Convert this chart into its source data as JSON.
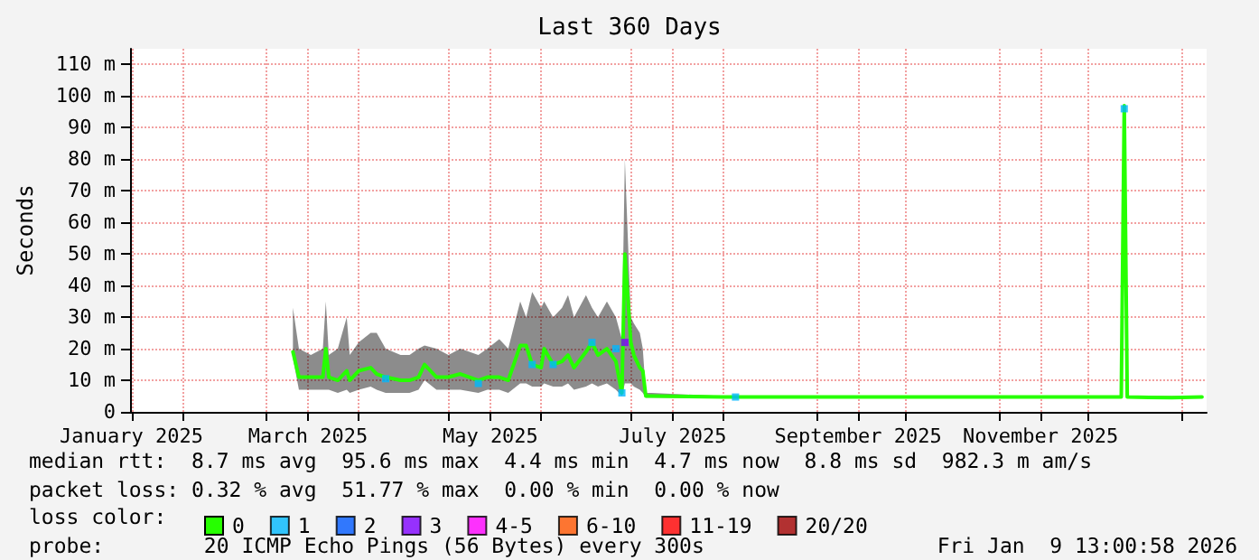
{
  "chart_data": {
    "type": "line",
    "title": "Last 360 Days",
    "ylabel": "Seconds",
    "xlim": [
      "2025-01-14T13:00",
      "2026-01-09T13:00"
    ],
    "xticks": [
      {
        "value": "2025-01-15",
        "label": "January 2025"
      },
      {
        "value": "2025-02-01",
        "label": null
      },
      {
        "value": "2025-03-01",
        "label": null
      },
      {
        "value": "2025-03-15",
        "label": "March 2025"
      },
      {
        "value": "2025-04-01",
        "label": null
      },
      {
        "value": "2025-05-01",
        "label": null
      },
      {
        "value": "2025-05-15",
        "label": "May 2025"
      },
      {
        "value": "2025-06-01",
        "label": null
      },
      {
        "value": "2025-07-01",
        "label": null
      },
      {
        "value": "2025-07-15",
        "label": "July 2025"
      },
      {
        "value": "2025-08-01",
        "label": null
      },
      {
        "value": "2025-09-01",
        "label": null
      },
      {
        "value": "2025-09-15",
        "label": "September 2025"
      },
      {
        "value": "2025-10-01",
        "label": null
      },
      {
        "value": "2025-11-01",
        "label": null
      },
      {
        "value": "2025-11-15",
        "label": "November 2025"
      },
      {
        "value": "2025-12-01",
        "label": null
      },
      {
        "value": "2026-01-01",
        "label": null
      }
    ],
    "ylim": [
      0,
      115
    ],
    "yticks": [
      0,
      {
        "value": 10,
        "label": "10 m"
      },
      {
        "value": 20,
        "label": "20 m"
      },
      {
        "value": 30,
        "label": "30 m"
      },
      {
        "value": 40,
        "label": "40 m"
      },
      {
        "value": 50,
        "label": "50 m"
      },
      {
        "value": 60,
        "label": "60 m"
      },
      {
        "value": 70,
        "label": "70 m"
      },
      {
        "value": 80,
        "label": "80 m"
      },
      {
        "value": 90,
        "label": "90 m"
      },
      {
        "value": 100,
        "label": "100 m"
      },
      {
        "value": 110,
        "label": "110 m"
      }
    ],
    "grid": true,
    "legend": "bottom left",
    "legend_title": "loss color:",
    "marker": "square",
    "series": [
      {
        "name": "0",
        "color": "#26ff00",
        "marker": "none",
        "x": [
          "2025-03-10",
          "2025-03-12",
          "2025-03-16",
          "2025-03-20",
          "2025-03-21",
          "2025-03-22",
          "2025-03-25",
          "2025-03-28",
          "2025-03-29",
          "2025-04-01",
          "2025-04-05",
          "2025-04-07",
          "2025-04-10",
          "2025-04-15",
          "2025-04-18",
          "2025-04-21",
          "2025-04-23",
          "2025-04-27",
          "2025-05-01",
          "2025-05-05",
          "2025-05-11",
          "2025-05-14",
          "2025-05-18",
          "2025-05-21",
          "2025-05-25",
          "2025-05-27",
          "2025-05-29",
          "2025-06-01",
          "2025-06-02",
          "2025-06-05",
          "2025-06-08",
          "2025-06-10",
          "2025-06-12",
          "2025-06-16",
          "2025-06-18",
          "2025-06-20",
          "2025-06-23",
          "2025-06-26",
          "2025-06-28",
          "2025-06-29",
          "2025-07-01",
          "2025-07-02",
          "2025-07-04",
          "2025-07-05",
          "2025-07-06",
          "2025-07-08",
          "2025-08-01",
          "2025-08-31",
          "2025-09-30",
          "2025-10-30",
          "2025-11-29",
          "2025-12-12",
          "2025-12-13",
          "2025-12-14",
          "2025-12-29",
          "2026-01-08"
        ],
        "values": [
          19,
          11,
          11,
          11,
          20,
          11,
          10,
          13,
          10,
          13,
          14,
          12,
          11,
          10,
          10,
          11,
          15,
          11,
          11,
          12,
          10,
          11,
          11,
          10,
          21,
          21,
          15,
          14,
          20,
          15,
          16,
          18,
          14,
          19,
          22,
          18,
          20,
          16,
          6,
          50,
          22,
          18,
          14,
          13,
          5,
          5,
          4.7,
          4.7,
          4.7,
          4.7,
          4.7,
          4.7,
          97,
          4.7,
          4.5,
          4.7
        ],
        "lower": [
          17,
          7,
          7,
          7,
          7,
          7,
          6,
          7,
          6,
          7,
          8,
          7,
          6,
          6,
          6,
          7,
          10,
          7,
          7,
          7,
          6,
          7,
          7,
          6,
          9,
          9,
          8,
          8,
          9,
          8,
          8,
          9,
          7,
          8,
          9,
          8,
          9,
          7,
          5,
          9,
          9,
          8,
          7,
          6,
          4.5,
          4.5,
          4.4,
          4.4,
          4.4,
          4.4,
          4.4,
          4.4,
          90,
          4.4,
          4.3,
          4.4
        ],
        "upper": [
          33,
          20,
          18,
          20,
          35,
          18,
          20,
          30,
          18,
          22,
          25,
          25,
          20,
          18,
          18,
          20,
          21,
          20,
          18,
          20,
          18,
          20,
          23,
          20,
          35,
          30,
          38,
          33,
          35,
          30,
          33,
          37,
          30,
          37,
          33,
          30,
          35,
          30,
          23,
          80,
          30,
          28,
          25,
          20,
          6,
          6,
          5,
          5,
          5,
          5,
          5,
          5,
          97,
          5,
          5,
          5
        ]
      },
      {
        "name": "1",
        "type": "scatter",
        "color": "#00b8ff",
        "x": [
          "2025-04-10",
          "2025-05-11",
          "2025-05-29",
          "2025-06-05",
          "2025-06-18",
          "2025-06-26",
          "2025-06-28",
          "2025-08-05",
          "2025-12-13"
        ],
        "values": [
          10.5,
          9,
          15,
          15,
          22,
          20,
          6,
          4.7,
          96
        ]
      },
      {
        "name": "2",
        "type": "scatter",
        "color": "#0059ff"
      },
      {
        "name": "3",
        "type": "scatter",
        "color": "#7e00ff",
        "x": [
          "2025-06-29"
        ],
        "values": [
          22
        ]
      },
      {
        "name": "4-5",
        "type": "scatter",
        "color": "#ff00ff"
      },
      {
        "name": "6-10",
        "type": "scatter",
        "color": "#ff5500"
      },
      {
        "name": "11-19",
        "type": "scatter",
        "color": "#ff0000"
      },
      {
        "name": "20/20",
        "type": "scatter",
        "color": "#a10000"
      }
    ],
    "annotations": [
      "median rtt:  8.7 ms avg  95.6 ms max  4.4 ms min  4.7 ms now  8.8 ms sd  982.3 m am/s",
      "packet loss: 0.32 % avg  51.77 % max  0.00 % min  0.00 % now",
      "probe:        20 ICMP Echo Pings (56 Bytes) every 300s",
      "Fri Jan  9 13:00:58 2026"
    ]
  }
}
